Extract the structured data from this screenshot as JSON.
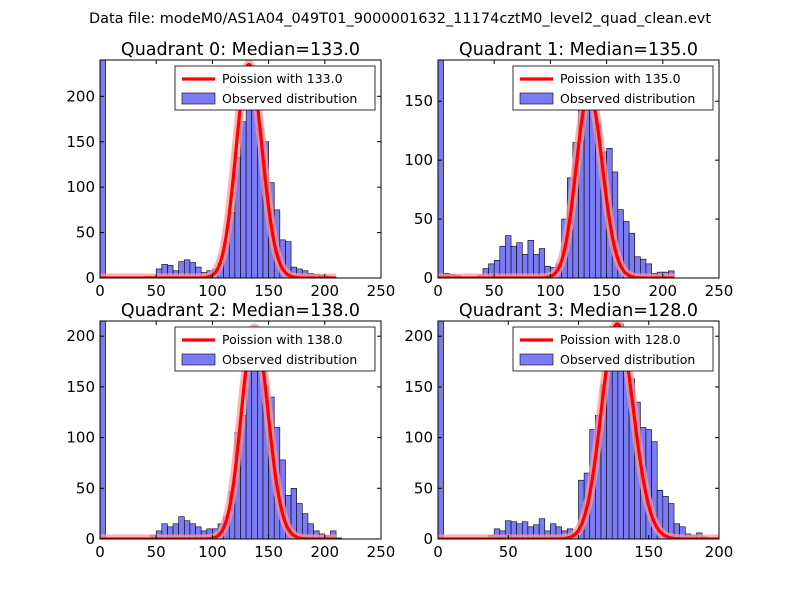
{
  "figure": {
    "suptitle": "Data file: modeM0/AS1A04_049T01_9000001632_11174cztM0_level2_quad_clean.evt"
  },
  "colors": {
    "bars_fill": "#7b7bf5",
    "bars_edge": "#000000",
    "poisson_line": "#ff0000",
    "poisson_halo": "#ff9a9a",
    "axes": "#000000"
  },
  "chart_data": [
    {
      "type": "bar",
      "title": "Quadrant 0: Median=133.0",
      "median": 133.0,
      "xlim": [
        0,
        250
      ],
      "ylim": [
        0,
        240
      ],
      "xticks": [
        0,
        50,
        100,
        150,
        200,
        250
      ],
      "yticks": [
        0,
        50,
        100,
        150,
        200
      ],
      "xlabel": "",
      "ylabel": "",
      "grid": false,
      "legend": {
        "position": "top-right",
        "line_label": "Poission with 133.0",
        "bar_label": "Observed distribution"
      },
      "bin_width": 5,
      "series": [
        {
          "name": "Observed distribution",
          "bin_starts": [
            0,
            40,
            45,
            50,
            55,
            60,
            65,
            70,
            75,
            80,
            85,
            90,
            95,
            100,
            105,
            110,
            115,
            120,
            125,
            130,
            135,
            140,
            145,
            150,
            155,
            160,
            165,
            170,
            175,
            180,
            185,
            190,
            195,
            200,
            205
          ],
          "values": [
            240,
            2,
            2,
            10,
            15,
            14,
            8,
            18,
            20,
            17,
            12,
            6,
            8,
            10,
            16,
            40,
            72,
            133,
            172,
            235,
            200,
            165,
            150,
            105,
            75,
            42,
            40,
            12,
            10,
            8,
            5,
            4,
            3,
            2,
            1
          ]
        },
        {
          "name": "Poission with 133.0",
          "lambda": 133.0,
          "x_range": [
            0,
            210
          ]
        }
      ]
    },
    {
      "type": "bar",
      "title": "Quadrant 1: Median=135.0",
      "median": 135.0,
      "xlim": [
        0,
        250
      ],
      "ylim": [
        0,
        185
      ],
      "xticks": [
        0,
        50,
        100,
        150,
        200,
        250
      ],
      "yticks": [
        0,
        50,
        100,
        150
      ],
      "xlabel": "",
      "ylabel": "",
      "grid": false,
      "legend": {
        "position": "top-right",
        "line_label": "Poission with 135.0",
        "bar_label": "Observed distribution"
      },
      "bin_width": 5,
      "series": [
        {
          "name": "Observed distribution",
          "bin_starts": [
            0,
            5,
            10,
            15,
            35,
            40,
            45,
            50,
            55,
            60,
            65,
            70,
            75,
            80,
            85,
            90,
            95,
            100,
            105,
            110,
            115,
            120,
            125,
            130,
            135,
            140,
            145,
            150,
            155,
            160,
            165,
            170,
            175,
            180,
            185,
            190,
            195,
            200,
            205
          ],
          "values": [
            185,
            4,
            3,
            2,
            2,
            8,
            12,
            15,
            27,
            36,
            27,
            30,
            20,
            32,
            20,
            25,
            10,
            9,
            12,
            50,
            85,
            115,
            147,
            157,
            150,
            130,
            107,
            110,
            90,
            58,
            48,
            38,
            18,
            16,
            12,
            4,
            5,
            5,
            6
          ]
        },
        {
          "name": "Poission with 135.0",
          "lambda": 135.0,
          "x_range": [
            0,
            210
          ]
        }
      ]
    },
    {
      "type": "bar",
      "title": "Quadrant 2: Median=138.0",
      "median": 138.0,
      "xlim": [
        0,
        250
      ],
      "ylim": [
        0,
        215
      ],
      "xticks": [
        0,
        50,
        100,
        150,
        200,
        250
      ],
      "yticks": [
        0,
        50,
        100,
        150,
        200
      ],
      "xlabel": "",
      "ylabel": "",
      "grid": false,
      "legend": {
        "position": "top-right",
        "line_label": "Poission with 138.0",
        "bar_label": "Observed distribution"
      },
      "bin_width": 5,
      "series": [
        {
          "name": "Observed distribution",
          "bin_starts": [
            0,
            45,
            50,
            55,
            60,
            65,
            70,
            75,
            80,
            85,
            90,
            95,
            100,
            105,
            110,
            115,
            120,
            125,
            130,
            135,
            140,
            145,
            150,
            155,
            160,
            165,
            170,
            175,
            180,
            185,
            190,
            195,
            200,
            205,
            210
          ],
          "values": [
            215,
            4,
            8,
            15,
            12,
            15,
            22,
            18,
            15,
            12,
            8,
            10,
            10,
            15,
            22,
            47,
            105,
            122,
            175,
            208,
            185,
            150,
            140,
            110,
            78,
            43,
            50,
            35,
            25,
            15,
            8,
            5,
            3,
            8,
            1
          ]
        },
        {
          "name": "Poission with 138.0",
          "lambda": 138.0,
          "x_range": [
            0,
            210
          ]
        }
      ]
    },
    {
      "type": "bar",
      "title": "Quadrant 3: Median=128.0",
      "median": 128.0,
      "xlim": [
        0,
        200
      ],
      "ylim": [
        0,
        215
      ],
      "xticks": [
        0,
        50,
        100,
        150,
        200
      ],
      "yticks": [
        0,
        50,
        100,
        150,
        200
      ],
      "xlabel": "",
      "ylabel": "",
      "grid": false,
      "legend": {
        "position": "top-right",
        "line_label": "Poission with 128.0",
        "bar_label": "Observed distribution"
      },
      "bin_width": 4,
      "series": [
        {
          "name": "Observed distribution",
          "bin_starts": [
            0,
            36,
            40,
            44,
            48,
            52,
            56,
            60,
            64,
            68,
            72,
            76,
            80,
            84,
            88,
            92,
            96,
            100,
            104,
            108,
            112,
            116,
            120,
            124,
            128,
            132,
            136,
            140,
            144,
            148,
            152,
            156,
            160,
            164,
            168,
            172,
            176,
            180,
            184,
            188
          ],
          "values": [
            215,
            4,
            10,
            8,
            18,
            17,
            15,
            17,
            12,
            14,
            20,
            8,
            15,
            12,
            8,
            10,
            5,
            58,
            65,
            108,
            122,
            152,
            170,
            188,
            212,
            175,
            158,
            135,
            110,
            108,
            96,
            48,
            42,
            35,
            15,
            12,
            5,
            4,
            6,
            2
          ]
        },
        {
          "name": "Poission with 128.0",
          "lambda": 128.0,
          "x_range": [
            0,
            200
          ]
        }
      ]
    }
  ]
}
